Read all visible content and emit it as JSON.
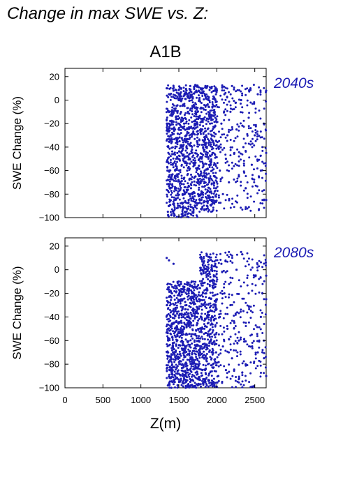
{
  "figure_title": "Change in max SWE vs. Z:",
  "scenario_title": "A1B",
  "colors": {
    "points": "#1c1cb4",
    "axis": "#000000",
    "panel_tag": "#1c1cb4"
  },
  "chart_data": [
    {
      "type": "scatter",
      "panel_label": "2040s",
      "xlabel": "",
      "ylabel": "SWE Change (%)",
      "xlim": [
        0,
        2650
      ],
      "ylim": [
        -100,
        27
      ],
      "xticks": [
        0,
        500,
        1000,
        1500,
        2000,
        2500
      ],
      "yticks": [
        20,
        0,
        -20,
        -40,
        -60,
        -80,
        -100
      ],
      "ytick_labels": [
        "20",
        "0",
        "−20",
        "−40",
        "−60",
        "−80",
        "−100"
      ],
      "show_xtick_labels": false,
      "grid": false,
      "points": [
        [
          1340,
          10
        ],
        [
          1345,
          -20
        ],
        [
          1350,
          -60
        ],
        [
          1355,
          -95
        ],
        [
          1360,
          -40
        ],
        [
          1370,
          5
        ],
        [
          1380,
          -75
        ],
        [
          1390,
          -30
        ],
        [
          1400,
          -98
        ],
        [
          1410,
          -10
        ],
        [
          1420,
          -55
        ],
        [
          1430,
          8
        ],
        [
          1440,
          -85
        ],
        [
          1450,
          -25
        ],
        [
          1460,
          -65
        ],
        [
          1470,
          -5
        ],
        [
          1480,
          -45
        ],
        [
          1490,
          -90
        ],
        [
          1500,
          0
        ],
        [
          1510,
          -35
        ],
        [
          1520,
          -70
        ],
        [
          1530,
          10
        ],
        [
          1540,
          -15
        ],
        [
          1550,
          -80
        ],
        [
          1560,
          -50
        ],
        [
          1570,
          -20
        ],
        [
          1580,
          -95
        ],
        [
          1590,
          5
        ],
        [
          1600,
          -40
        ],
        [
          1610,
          -60
        ],
        [
          1620,
          -10
        ],
        [
          1630,
          -85
        ],
        [
          1640,
          -30
        ],
        [
          1650,
          12
        ],
        [
          1660,
          -75
        ],
        [
          1670,
          -45
        ],
        [
          1680,
          -5
        ],
        [
          1690,
          -92
        ],
        [
          1700,
          -55
        ],
        [
          1710,
          -20
        ],
        [
          1720,
          -65
        ],
        [
          1730,
          8
        ],
        [
          1740,
          -35
        ],
        [
          1750,
          -88
        ],
        [
          1760,
          -15
        ],
        [
          1770,
          -50
        ],
        [
          1780,
          -70
        ],
        [
          1790,
          10
        ],
        [
          1800,
          -25
        ],
        [
          1810,
          -80
        ],
        [
          1820,
          -40
        ],
        [
          1830,
          -8
        ],
        [
          1840,
          -60
        ],
        [
          1850,
          12
        ],
        [
          1860,
          -30
        ],
        [
          1870,
          -90
        ],
        [
          1880,
          -45
        ],
        [
          1890,
          0
        ],
        [
          1900,
          -70
        ],
        [
          1910,
          -20
        ],
        [
          1920,
          -55
        ],
        [
          1930,
          10
        ],
        [
          1940,
          -85
        ],
        [
          1950,
          -35
        ],
        [
          1960,
          -5
        ],
        [
          1970,
          -65
        ],
        [
          1980,
          -15
        ],
        [
          1990,
          -75
        ],
        [
          2000,
          8
        ],
        [
          2020,
          -40
        ],
        [
          2040,
          -60
        ],
        [
          2060,
          -20
        ],
        [
          2080,
          -80
        ],
        [
          2100,
          5
        ],
        [
          2120,
          -50
        ],
        [
          2140,
          -30
        ],
        [
          2160,
          -70
        ],
        [
          2180,
          -10
        ],
        [
          2200,
          12
        ],
        [
          2230,
          -45
        ],
        [
          2260,
          -25
        ],
        [
          2290,
          -65
        ],
        [
          2320,
          0
        ],
        [
          2350,
          -40
        ],
        [
          2380,
          -75
        ],
        [
          2420,
          -15
        ],
        [
          2460,
          -55
        ],
        [
          2500,
          -30
        ],
        [
          2540,
          5
        ],
        [
          2580,
          -60
        ],
        [
          2620,
          -20
        ],
        [
          2650,
          -45
        ],
        [
          2650,
          8
        ],
        [
          2650,
          -85
        ]
      ]
    },
    {
      "type": "scatter",
      "panel_label": "2080s",
      "xlabel": "Z(m)",
      "ylabel": "SWE Change (%)",
      "xlim": [
        0,
        2650
      ],
      "ylim": [
        -100,
        27
      ],
      "xticks": [
        0,
        500,
        1000,
        1500,
        2000,
        2500
      ],
      "xtick_labels": [
        "0",
        "500",
        "1000",
        "1500",
        "2000",
        "2500"
      ],
      "yticks": [
        20,
        0,
        -20,
        -40,
        -60,
        -80,
        -100
      ],
      "ytick_labels": [
        "20",
        "0",
        "−20",
        "−40",
        "−60",
        "−80",
        "−100"
      ],
      "show_xtick_labels": true,
      "grid": false,
      "points": [
        [
          1340,
          10
        ],
        [
          1345,
          -30
        ],
        [
          1350,
          -70
        ],
        [
          1355,
          -98
        ],
        [
          1360,
          -50
        ],
        [
          1370,
          8
        ],
        [
          1380,
          -85
        ],
        [
          1390,
          -40
        ],
        [
          1400,
          -100
        ],
        [
          1410,
          -20
        ],
        [
          1420,
          -65
        ],
        [
          1430,
          5
        ],
        [
          1440,
          -95
        ],
        [
          1450,
          -35
        ],
        [
          1460,
          -75
        ],
        [
          1470,
          -15
        ],
        [
          1480,
          -55
        ],
        [
          1490,
          -98
        ],
        [
          1500,
          -10
        ],
        [
          1510,
          -45
        ],
        [
          1520,
          -80
        ],
        [
          1530,
          -25
        ],
        [
          1540,
          -60
        ],
        [
          1550,
          -90
        ],
        [
          1560,
          -40
        ],
        [
          1570,
          -15
        ],
        [
          1580,
          -70
        ],
        [
          1590,
          -100
        ],
        [
          1600,
          -30
        ],
        [
          1610,
          -55
        ],
        [
          1620,
          -85
        ],
        [
          1630,
          -20
        ],
        [
          1640,
          -65
        ],
        [
          1650,
          -95
        ],
        [
          1660,
          -45
        ],
        [
          1670,
          -10
        ],
        [
          1680,
          -75
        ],
        [
          1690,
          -35
        ],
        [
          1700,
          -90
        ],
        [
          1710,
          -55
        ],
        [
          1720,
          -15
        ],
        [
          1730,
          -80
        ],
        [
          1740,
          -40
        ],
        [
          1750,
          -98
        ],
        [
          1760,
          -60
        ],
        [
          1770,
          -25
        ],
        [
          1780,
          -70
        ],
        [
          1790,
          0
        ],
        [
          1800,
          -50
        ],
        [
          1810,
          -85
        ],
        [
          1820,
          -30
        ],
        [
          1830,
          2
        ],
        [
          1840,
          -65
        ],
        [
          1850,
          -95
        ],
        [
          1860,
          -20
        ],
        [
          1870,
          -75
        ],
        [
          1880,
          0
        ],
        [
          1890,
          -45
        ],
        [
          1900,
          -88
        ],
        [
          1910,
          -10
        ],
        [
          1920,
          -60
        ],
        [
          1930,
          2
        ],
        [
          1940,
          -35
        ],
        [
          1950,
          -80
        ],
        [
          1960,
          -15
        ],
        [
          1970,
          -55
        ],
        [
          1980,
          5
        ],
        [
          1990,
          -70
        ],
        [
          2000,
          -25
        ],
        [
          2020,
          -90
        ],
        [
          2040,
          -40
        ],
        [
          2060,
          5
        ],
        [
          2080,
          -65
        ],
        [
          2100,
          -20
        ],
        [
          2120,
          -85
        ],
        [
          2140,
          -50
        ],
        [
          2160,
          15
        ],
        [
          2180,
          -30
        ],
        [
          2200,
          -75
        ],
        [
          2230,
          -45
        ],
        [
          2260,
          0
        ],
        [
          2290,
          -60
        ],
        [
          2320,
          15
        ],
        [
          2350,
          -35
        ],
        [
          2380,
          -80
        ],
        [
          2420,
          -20
        ],
        [
          2460,
          -55
        ],
        [
          2500,
          -5
        ],
        [
          2540,
          -70
        ],
        [
          2580,
          -40
        ],
        [
          2620,
          -60
        ],
        [
          2650,
          -25
        ],
        [
          2650,
          -5
        ],
        [
          2650,
          -90
        ]
      ]
    }
  ]
}
